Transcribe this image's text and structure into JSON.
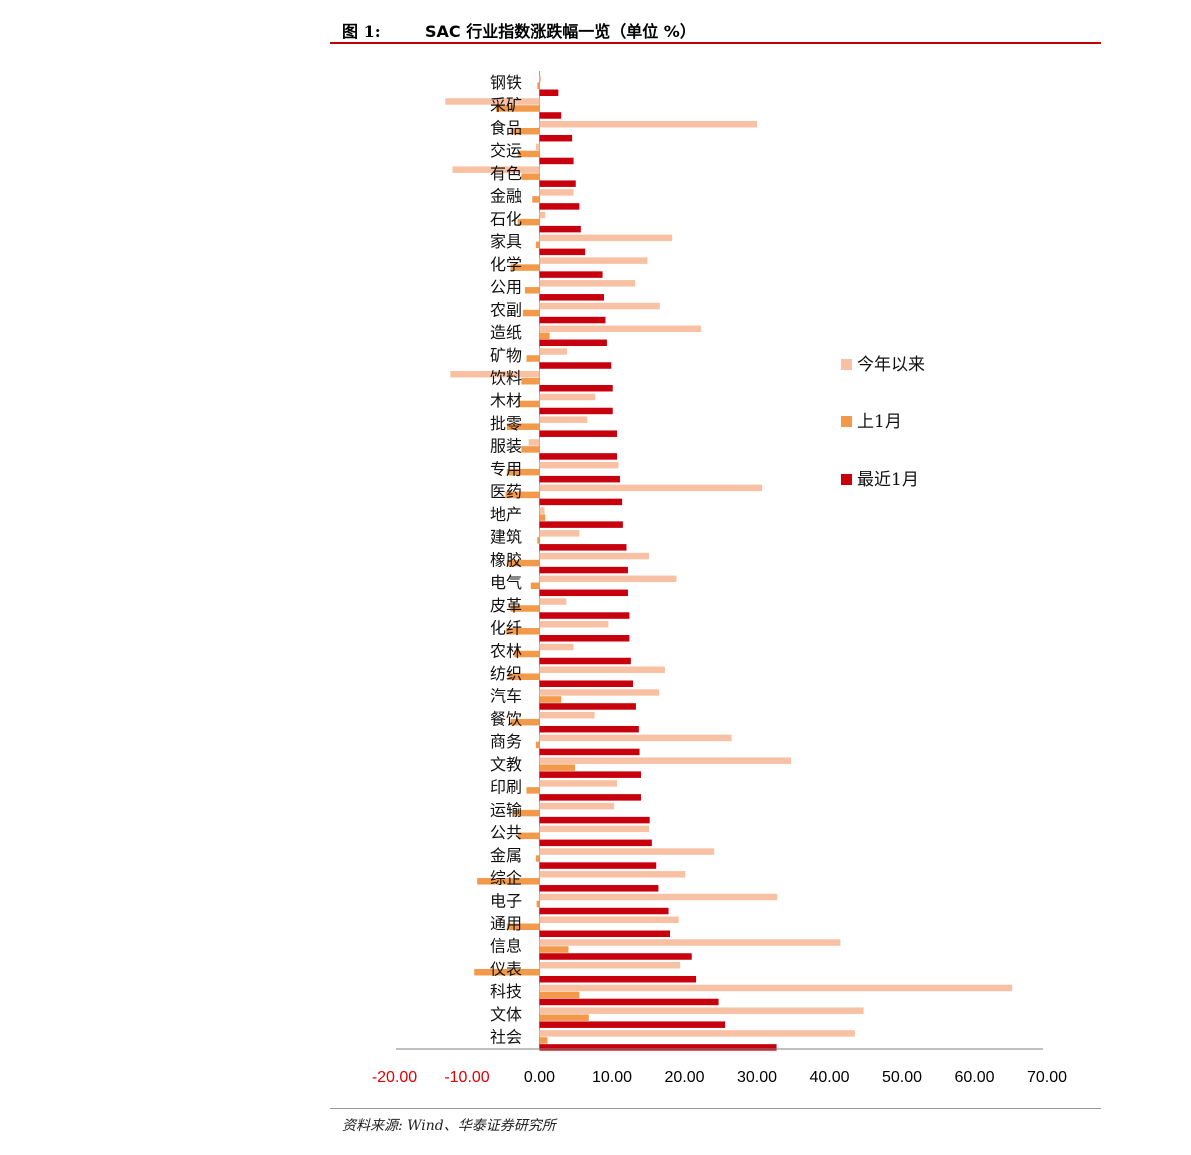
{
  "header": {
    "figure_label": "图 1:",
    "title": "SAC 行业指数涨跌幅一览（单位 %）"
  },
  "footer": {
    "source": "资料来源: Wind、华泰证券研究所"
  },
  "colors": {
    "ytd": "#f8c1a4",
    "last_month": "#f39a4a",
    "recent_month": "#c8000e",
    "negative_tick": "#e00000",
    "positive_tick": "#000000",
    "accent_rule": "#c00000"
  },
  "chart_data": {
    "type": "bar",
    "orientation": "horizontal",
    "categories": [
      "钢铁",
      "采矿",
      "食品",
      "交运",
      "有色",
      "金融",
      "石化",
      "家具",
      "化学",
      "公用",
      "农副",
      "造纸",
      "矿物",
      "饮料",
      "木材",
      "批零",
      "服装",
      "专用",
      "医药",
      "地产",
      "建筑",
      "橡胶",
      "电气",
      "皮革",
      "化纤",
      "农林",
      "纺织",
      "汽车",
      "餐饮",
      "商务",
      "文教",
      "印刷",
      "运输",
      "公共",
      "金属",
      "综企",
      "电子",
      "通用",
      "信息",
      "仪表",
      "科技",
      "文体",
      "社会"
    ],
    "series": [
      {
        "name": "今年以来",
        "color": "#f8c1a4",
        "values": [
          0.2,
          -13,
          30,
          -0.5,
          -12,
          4.7,
          0.8,
          18.3,
          14.9,
          13.2,
          16.6,
          22.3,
          3.8,
          -12.3,
          7.7,
          6.6,
          -1.5,
          10.9,
          30.7,
          0.7,
          5.5,
          15.1,
          18.9,
          3.7,
          9.5,
          4.7,
          17.3,
          16.5,
          7.6,
          26.5,
          34.7,
          10.7,
          10.3,
          15.1,
          24.1,
          20.1,
          32.8,
          19.2,
          41.5,
          19.4,
          65.2,
          44.7,
          43.5
        ]
      },
      {
        "name": "上1月",
        "color": "#f39a4a",
        "values": [
          -0.3,
          -6,
          -4,
          -3,
          -2.5,
          -1,
          -3,
          -0.5,
          -4,
          -2,
          -2.3,
          1.4,
          -1.8,
          -2.5,
          -2.8,
          -4.5,
          -2.5,
          -4.5,
          -4.7,
          0.8,
          -0.3,
          -4.5,
          -1.2,
          -4,
          -4.6,
          -3.5,
          -4.3,
          3,
          -4,
          -0.5,
          4.9,
          -1.8,
          -3.5,
          -3,
          -0.5,
          -8.6,
          -0.4,
          -4.5,
          4,
          -9,
          5.5,
          6.8,
          1.1
        ]
      },
      {
        "name": "最近1月",
        "color": "#c8000e",
        "values": [
          2.6,
          3,
          4.5,
          4.7,
          5,
          5.5,
          5.7,
          6.3,
          8.7,
          8.9,
          9.1,
          9.3,
          9.9,
          10.1,
          10.1,
          10.7,
          10.7,
          11.1,
          11.4,
          11.5,
          12,
          12.2,
          12.2,
          12.4,
          12.4,
          12.6,
          12.9,
          13.3,
          13.7,
          13.8,
          14,
          14,
          15.2,
          15.5,
          16.1,
          16.4,
          17.8,
          18,
          21,
          21.6,
          24.7,
          25.6,
          32.7
        ]
      }
    ],
    "xlim": [
      -20,
      70
    ],
    "x_ticks": [
      "-20.00",
      "-10.00",
      "0.00",
      "10.00",
      "20.00",
      "30.00",
      "40.00",
      "50.00",
      "60.00",
      "70.00"
    ],
    "legend_position": "right"
  }
}
